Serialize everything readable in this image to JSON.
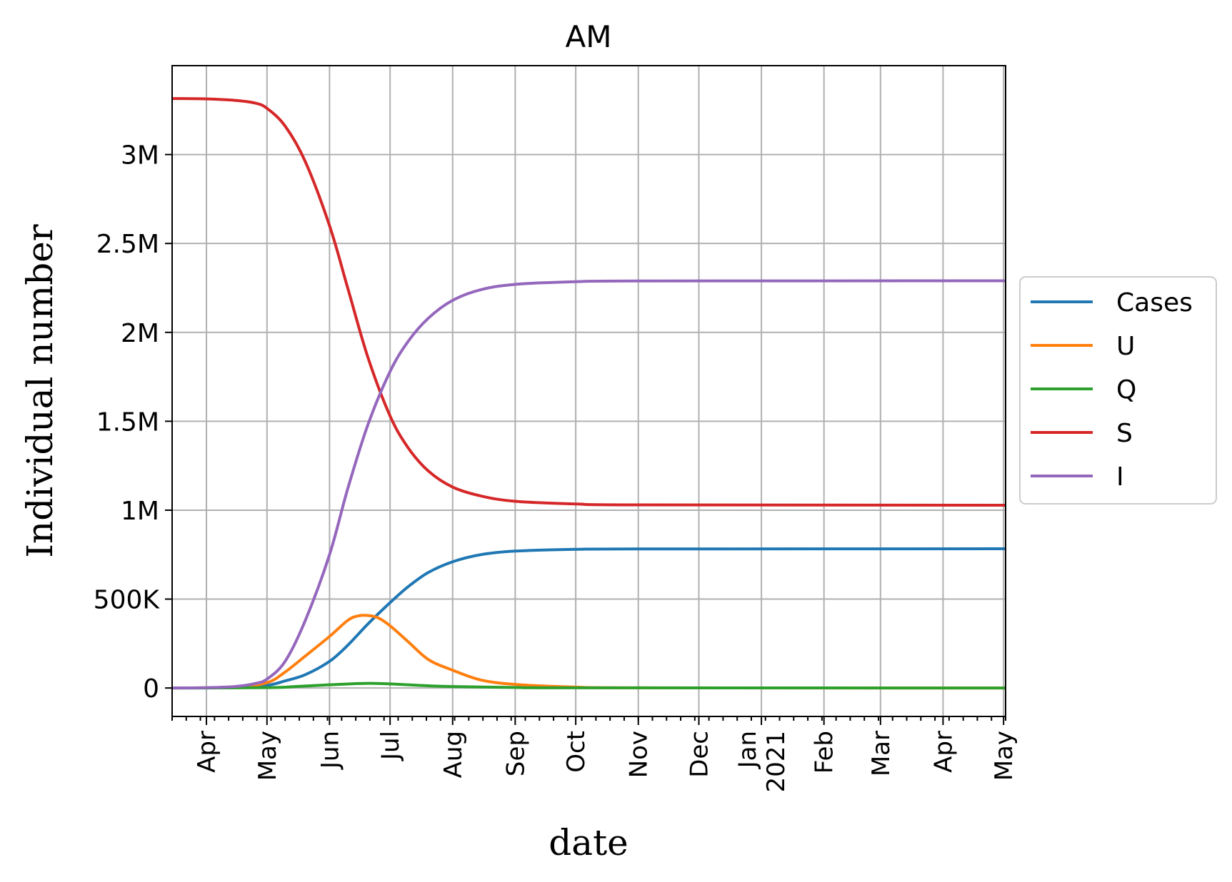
{
  "chart_data": {
    "type": "line",
    "title": "AM",
    "xlabel": "date",
    "ylabel": "Individual number",
    "xlim": [
      "2020-03-15",
      "2021-05-02"
    ],
    "ylim": [
      -160000,
      3500000
    ],
    "grid": true,
    "legend_position": "center-right outside",
    "x_ticks": [
      {
        "date": "2020-04-01",
        "label": "Apr"
      },
      {
        "date": "2020-05-01",
        "label": "May"
      },
      {
        "date": "2020-06-01",
        "label": "Jun"
      },
      {
        "date": "2020-07-01",
        "label": "Jul"
      },
      {
        "date": "2020-08-01",
        "label": "Aug"
      },
      {
        "date": "2020-09-01",
        "label": "Sep"
      },
      {
        "date": "2020-10-01",
        "label": "Oct"
      },
      {
        "date": "2020-11-01",
        "label": "Nov"
      },
      {
        "date": "2020-12-01",
        "label": "Dec"
      },
      {
        "date": "2021-01-01",
        "label": "Jan\n2021"
      },
      {
        "date": "2021-02-01",
        "label": "Feb"
      },
      {
        "date": "2021-03-01",
        "label": "Mar"
      },
      {
        "date": "2021-04-01",
        "label": "Apr"
      },
      {
        "date": "2021-05-01",
        "label": "May"
      }
    ],
    "y_ticks": [
      {
        "value": 0,
        "label": "0"
      },
      {
        "value": 500000,
        "label": "500K"
      },
      {
        "value": 1000000,
        "label": "1M"
      },
      {
        "value": 1500000,
        "label": "1.5M"
      },
      {
        "value": 2000000,
        "label": "2M"
      },
      {
        "value": 2500000,
        "label": "2.5M"
      },
      {
        "value": 3000000,
        "label": "3M"
      }
    ],
    "series": [
      {
        "name": "Cases",
        "color": "#1f77b4",
        "points": [
          [
            "2020-03-15",
            0
          ],
          [
            "2020-04-15",
            2000
          ],
          [
            "2020-05-01",
            15000
          ],
          [
            "2020-05-10",
            40000
          ],
          [
            "2020-05-20",
            75000
          ],
          [
            "2020-06-01",
            150000
          ],
          [
            "2020-06-10",
            240000
          ],
          [
            "2020-06-20",
            360000
          ],
          [
            "2020-07-01",
            480000
          ],
          [
            "2020-07-10",
            570000
          ],
          [
            "2020-07-20",
            650000
          ],
          [
            "2020-08-01",
            710000
          ],
          [
            "2020-08-15",
            750000
          ],
          [
            "2020-09-01",
            770000
          ],
          [
            "2020-10-01",
            780000
          ],
          [
            "2020-11-01",
            782000
          ],
          [
            "2021-05-02",
            783000
          ]
        ]
      },
      {
        "name": "U",
        "color": "#ff7f0e",
        "points": [
          [
            "2020-03-15",
            0
          ],
          [
            "2020-04-15",
            5000
          ],
          [
            "2020-05-01",
            30000
          ],
          [
            "2020-05-10",
            90000
          ],
          [
            "2020-05-20",
            180000
          ],
          [
            "2020-06-01",
            290000
          ],
          [
            "2020-06-10",
            380000
          ],
          [
            "2020-06-15",
            405000
          ],
          [
            "2020-06-20",
            408000
          ],
          [
            "2020-06-25",
            395000
          ],
          [
            "2020-07-01",
            350000
          ],
          [
            "2020-07-10",
            260000
          ],
          [
            "2020-07-20",
            160000
          ],
          [
            "2020-08-01",
            100000
          ],
          [
            "2020-08-15",
            45000
          ],
          [
            "2020-09-01",
            20000
          ],
          [
            "2020-10-01",
            5000
          ],
          [
            "2020-11-01",
            1000
          ],
          [
            "2021-05-02",
            0
          ]
        ]
      },
      {
        "name": "Q",
        "color": "#2ca02c",
        "points": [
          [
            "2020-03-15",
            0
          ],
          [
            "2020-05-01",
            2000
          ],
          [
            "2020-05-15",
            8000
          ],
          [
            "2020-06-01",
            18000
          ],
          [
            "2020-06-15",
            25000
          ],
          [
            "2020-06-22",
            26000
          ],
          [
            "2020-07-01",
            23000
          ],
          [
            "2020-07-15",
            15000
          ],
          [
            "2020-08-01",
            8000
          ],
          [
            "2020-09-01",
            3000
          ],
          [
            "2020-10-01",
            1000
          ],
          [
            "2021-05-02",
            0
          ]
        ]
      },
      {
        "name": "S",
        "color": "#d62728",
        "points": [
          [
            "2020-03-15",
            3315000
          ],
          [
            "2020-04-01",
            3313000
          ],
          [
            "2020-04-15",
            3305000
          ],
          [
            "2020-04-25",
            3290000
          ],
          [
            "2020-05-01",
            3260000
          ],
          [
            "2020-05-10",
            3160000
          ],
          [
            "2020-05-20",
            2960000
          ],
          [
            "2020-06-01",
            2600000
          ],
          [
            "2020-06-10",
            2250000
          ],
          [
            "2020-06-20",
            1860000
          ],
          [
            "2020-07-01",
            1530000
          ],
          [
            "2020-07-10",
            1350000
          ],
          [
            "2020-07-20",
            1220000
          ],
          [
            "2020-08-01",
            1130000
          ],
          [
            "2020-08-15",
            1080000
          ],
          [
            "2020-09-01",
            1050000
          ],
          [
            "2020-10-01",
            1035000
          ],
          [
            "2020-11-01",
            1030000
          ],
          [
            "2021-05-02",
            1028000
          ]
        ]
      },
      {
        "name": "I",
        "color": "#9467bd",
        "points": [
          [
            "2020-03-15",
            0
          ],
          [
            "2020-04-01",
            2000
          ],
          [
            "2020-04-15",
            8000
          ],
          [
            "2020-04-25",
            25000
          ],
          [
            "2020-05-01",
            50000
          ],
          [
            "2020-05-10",
            150000
          ],
          [
            "2020-05-20",
            380000
          ],
          [
            "2020-06-01",
            750000
          ],
          [
            "2020-06-10",
            1120000
          ],
          [
            "2020-06-20",
            1480000
          ],
          [
            "2020-07-01",
            1780000
          ],
          [
            "2020-07-10",
            1950000
          ],
          [
            "2020-07-20",
            2080000
          ],
          [
            "2020-08-01",
            2180000
          ],
          [
            "2020-08-15",
            2240000
          ],
          [
            "2020-09-01",
            2270000
          ],
          [
            "2020-10-01",
            2285000
          ],
          [
            "2020-11-01",
            2289000
          ],
          [
            "2021-05-02",
            2290000
          ]
        ]
      }
    ]
  }
}
